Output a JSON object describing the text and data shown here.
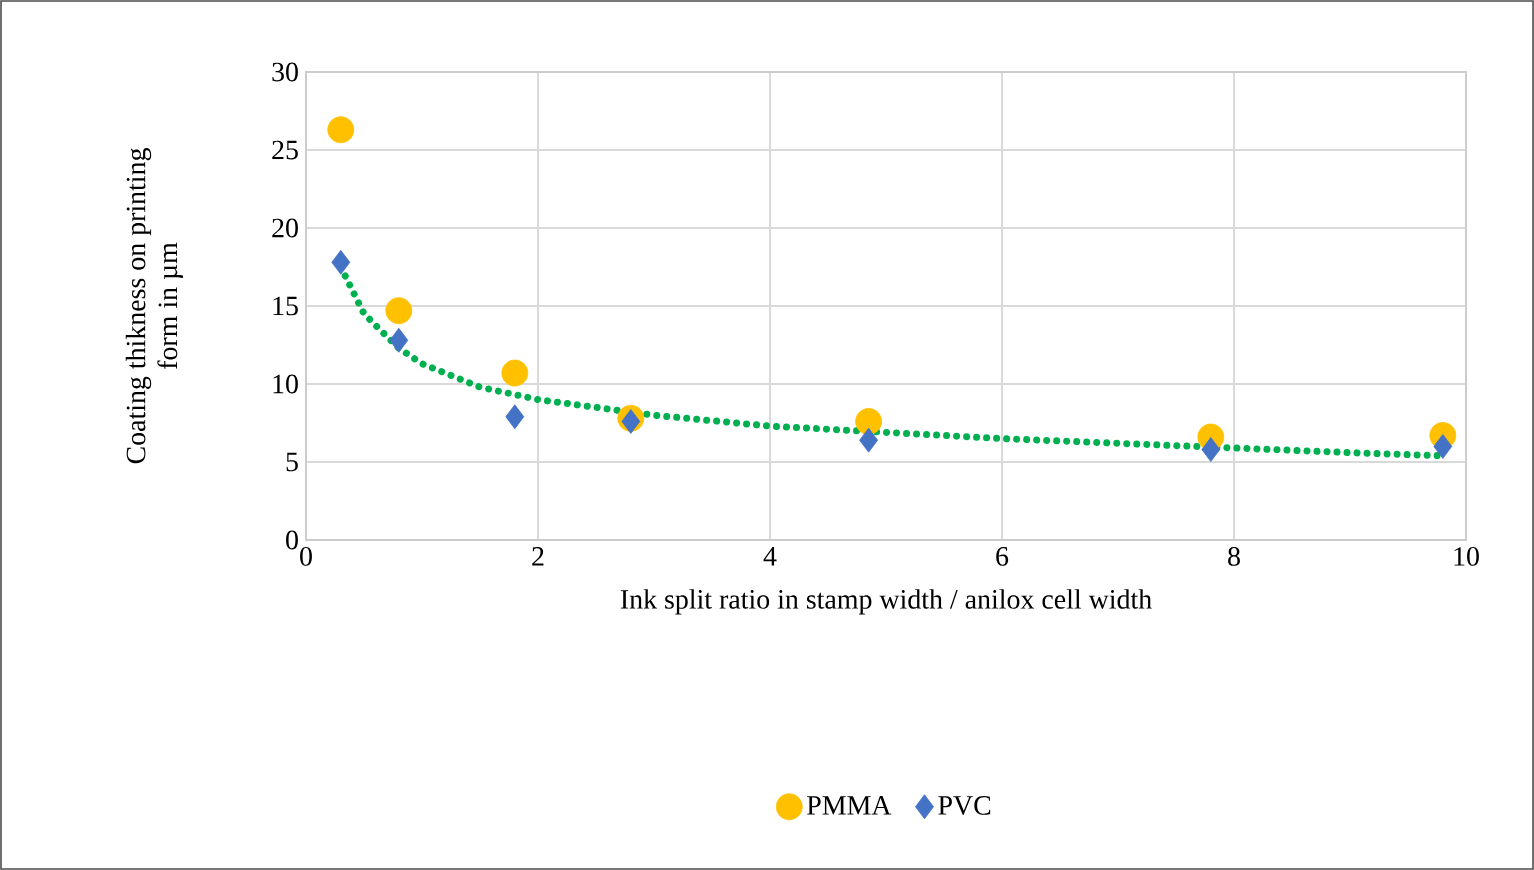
{
  "chart_data": {
    "type": "scatter",
    "xlabel": "Ink split ratio in stamp width / anilox cell width",
    "ylabel": "Coating thikness on printing form in µm",
    "xlim": [
      0,
      10
    ],
    "xticks": [
      0,
      2,
      4,
      6,
      8,
      10
    ],
    "ylim": [
      0,
      30
    ],
    "yticks": [
      0,
      5,
      10,
      15,
      20,
      25,
      30
    ],
    "grid": true,
    "legend": "bottom",
    "series": [
      {
        "name": "PMMA",
        "color": "#ffc000",
        "marker": "circle",
        "x": [
          0.3,
          0.8,
          1.8,
          2.8,
          4.85,
          7.8,
          9.8
        ],
        "values": [
          26.3,
          14.7,
          10.7,
          7.8,
          7.6,
          6.6,
          6.7
        ]
      },
      {
        "name": "PVC",
        "color": "#4472c4",
        "marker": "diamond",
        "x": [
          0.3,
          0.8,
          1.8,
          2.8,
          4.85,
          7.8,
          9.8
        ],
        "values": [
          17.8,
          12.8,
          7.9,
          7.6,
          6.4,
          5.8,
          6.0
        ]
      },
      {
        "type": "line",
        "color": "#00b050",
        "line_style": "dotted",
        "marker": "none",
        "x": [
          0.3,
          0.5,
          0.8,
          1.0,
          1.5,
          2,
          3,
          4,
          5,
          6,
          7,
          8,
          9,
          9.8
        ],
        "values": [
          17.5,
          14.5,
          12.3,
          11.3,
          9.8,
          9.0,
          8.0,
          7.3,
          6.9,
          6.5,
          6.2,
          5.9,
          5.6,
          5.4
        ]
      }
    ]
  }
}
